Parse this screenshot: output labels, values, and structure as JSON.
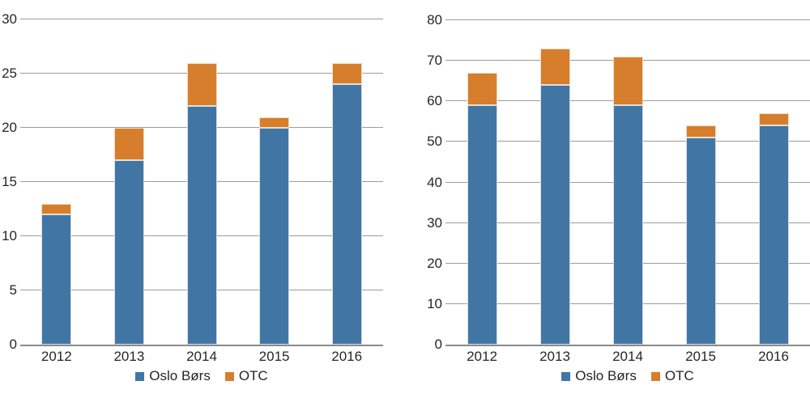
{
  "figure": {
    "background": "#ffffff"
  },
  "colors": {
    "gridline": "#9c9c9c",
    "axis_line": "#8a8a8a",
    "text": "#262626"
  },
  "chart_data": [
    {
      "id": "left-chart",
      "type": "bar",
      "stacked": true,
      "grid": true,
      "legend_position": "bottom",
      "categories": [
        "2012",
        "2013",
        "2014",
        "2015",
        "2016"
      ],
      "series": [
        {
          "name": "Oslo Børs",
          "key": "oslo-bors",
          "color": "#4176A4",
          "border_color": "#d6e0ea",
          "values": [
            12,
            17,
            22,
            20,
            24
          ]
        },
        {
          "name": "OTC",
          "key": "otc",
          "color": "#D67E2C",
          "border_color": "#f3ddc2",
          "values": [
            1,
            3,
            4,
            1,
            2
          ]
        }
      ],
      "ylim": [
        0,
        30
      ],
      "yticks": [
        0,
        5,
        10,
        15,
        20,
        25,
        30
      ]
    },
    {
      "id": "right-chart",
      "type": "bar",
      "stacked": true,
      "grid": true,
      "legend_position": "bottom",
      "categories": [
        "2012",
        "2013",
        "2014",
        "2015",
        "2016"
      ],
      "series": [
        {
          "name": "Oslo Børs",
          "key": "oslo-bors",
          "color": "#4176A4",
          "border_color": "#d6e0ea",
          "values": [
            59,
            64,
            59,
            51,
            54
          ]
        },
        {
          "name": "OTC",
          "key": "otc",
          "color": "#D67E2C",
          "border_color": "#f3ddc2",
          "values": [
            8,
            9,
            12,
            3,
            3
          ]
        }
      ],
      "ylim": [
        0,
        80
      ],
      "yticks": [
        0,
        10,
        20,
        30,
        40,
        50,
        60,
        70,
        80
      ]
    }
  ]
}
